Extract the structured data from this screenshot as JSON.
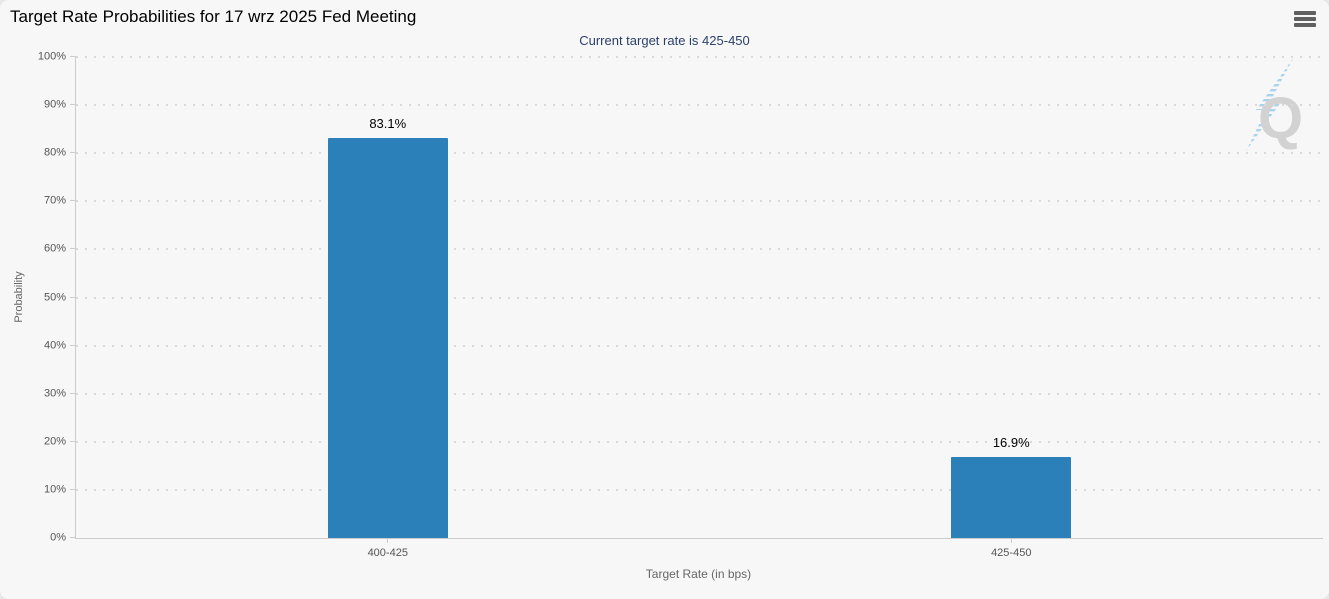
{
  "header": {
    "title": "Target Rate Probabilities for 17 wrz 2025 Fed Meeting",
    "subtitle": "Current target rate is 425-450"
  },
  "menu": {
    "icon": "hamburger-menu-icon"
  },
  "watermark": {
    "letter": "Q"
  },
  "chart_data": {
    "type": "bar",
    "title": "Target Rate Probabilities for 17 wrz 2025 Fed Meeting",
    "subtitle": "Current target rate is 425-450",
    "categories": [
      "400-425",
      "425-450"
    ],
    "values": [
      83.1,
      16.9
    ],
    "value_labels": [
      "83.1%",
      "16.9%"
    ],
    "xlabel": "Target Rate (in bps)",
    "ylabel": "Probability",
    "ylim": [
      0,
      100
    ],
    "ytick_step": 10,
    "ytick_suffix": "%",
    "grid": "dotted-horizontal",
    "legend_position": "none",
    "bar_color": "#2b80b9"
  },
  "colors": {
    "card_background": "#f7f7f7",
    "page_background": "#e9e9e9",
    "grid_dot": "#d9d9d9",
    "axis_line": "#cccccc",
    "tick_label": "#555555",
    "axis_title": "#666666",
    "title_text": "#000000",
    "subtitle_text": "#2a3f6b",
    "menu_icon": "#606060",
    "bar_fill": "#2b80b9",
    "watermark_letter": "#d2d2d2",
    "watermark_bolt": "#a8d3ea"
  }
}
